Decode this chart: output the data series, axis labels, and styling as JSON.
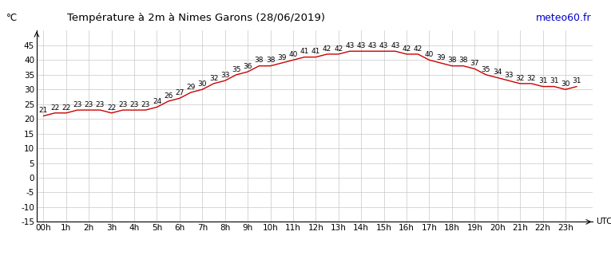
{
  "title": "Température à 2m à Nimes Garons (28/06/2019)",
  "ylabel": "°C",
  "xlabel_right": "UTC",
  "watermark": "meteo60.fr",
  "hours": [
    "00h",
    "1h",
    "2h",
    "3h",
    "4h",
    "5h",
    "6h",
    "7h",
    "8h",
    "9h",
    "10h",
    "11h",
    "12h",
    "13h",
    "14h",
    "15h",
    "16h",
    "17h",
    "18h",
    "19h",
    "20h",
    "21h",
    "22h",
    "23h"
  ],
  "temperatures": [
    21,
    22,
    22,
    23,
    23,
    23,
    22,
    23,
    23,
    23,
    24,
    26,
    27,
    29,
    30,
    32,
    33,
    35,
    36,
    38,
    38,
    39,
    40,
    41,
    41,
    42,
    42,
    43,
    43,
    43,
    43,
    43,
    42,
    42,
    40,
    39,
    38,
    38,
    37,
    35,
    34,
    33,
    32,
    32,
    31,
    31,
    30,
    31
  ],
  "temp_per_hour": [
    21,
    22,
    22,
    23,
    23,
    23,
    22,
    23,
    23,
    24,
    26,
    27,
    29,
    30,
    32,
    33,
    35,
    36,
    38,
    38,
    39,
    40,
    41,
    41,
    42,
    43,
    43,
    43,
    43,
    43,
    42,
    42,
    40,
    39,
    38,
    38,
    37,
    35,
    34,
    33,
    32,
    32,
    31,
    31,
    30,
    31,
    30,
    31
  ],
  "ylim": [
    -15,
    50
  ],
  "yticks": [
    -15,
    -10,
    -5,
    0,
    5,
    10,
    15,
    20,
    25,
    30,
    35,
    40,
    45
  ],
  "ytick_labels": [
    "-15",
    "-10",
    "-5",
    "0",
    "5",
    "10",
    "15",
    "20",
    "25",
    "30",
    "35",
    "40",
    "45"
  ],
  "line_color": "#cc0000",
  "bg_color": "#ffffff",
  "grid_color": "#c8c8c8",
  "title_color": "#000000",
  "watermark_color": "#0000cc",
  "label_fontsize": 7.0,
  "title_fontsize": 9.5,
  "tick_fontsize": 7.5
}
